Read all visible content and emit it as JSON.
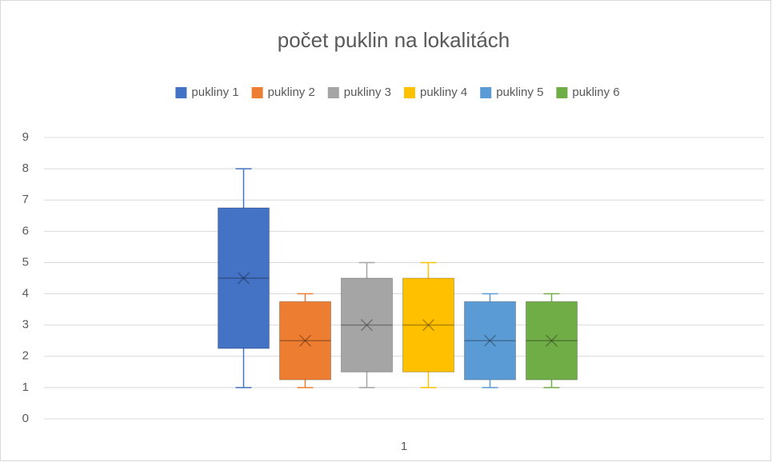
{
  "chart_data": {
    "type": "box",
    "title": "počet puklin na lokalitách",
    "categories": [
      "1"
    ],
    "series": [
      {
        "name": "pukliny 1",
        "color": "#4472c4",
        "min": 1,
        "q1": 2.25,
        "median": 4.5,
        "q3": 6.75,
        "max": 8,
        "mean": 4.5
      },
      {
        "name": "pukliny 2",
        "color": "#ed7d31",
        "min": 1,
        "q1": 1.25,
        "median": 2.5,
        "q3": 3.75,
        "max": 4,
        "mean": 2.5
      },
      {
        "name": "pukliny 3",
        "color": "#a5a5a5",
        "min": 1,
        "q1": 1.5,
        "median": 3,
        "q3": 4.5,
        "max": 5,
        "mean": 3
      },
      {
        "name": "pukliny 4",
        "color": "#ffc000",
        "min": 1,
        "q1": 1.5,
        "median": 3,
        "q3": 4.5,
        "max": 5,
        "mean": 3
      },
      {
        "name": "pukliny 5",
        "color": "#5b9bd5",
        "min": 1,
        "q1": 1.25,
        "median": 2.5,
        "q3": 3.75,
        "max": 4,
        "mean": 2.5
      },
      {
        "name": "pukliny 6",
        "color": "#70ad47",
        "min": 1,
        "q1": 1.25,
        "median": 2.5,
        "q3": 3.75,
        "max": 4,
        "mean": 2.5
      }
    ],
    "ylim": [
      0,
      9
    ],
    "yticks": [
      0,
      1,
      2,
      3,
      4,
      5,
      6,
      7,
      8,
      9
    ],
    "grid": true,
    "legend": "top"
  }
}
